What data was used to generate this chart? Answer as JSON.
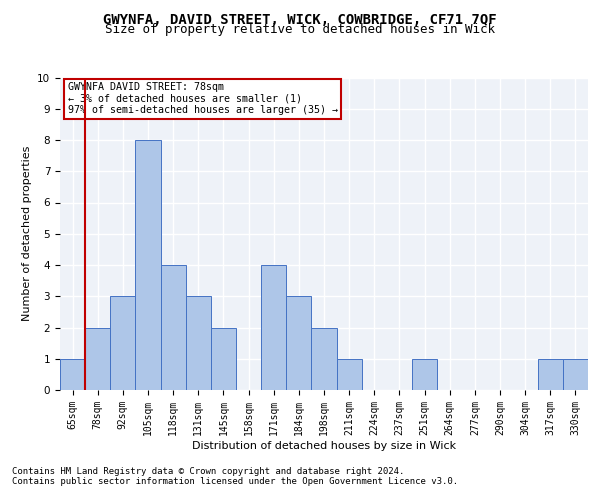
{
  "title": "GWYNFA, DAVID STREET, WICK, COWBRIDGE, CF71 7QF",
  "subtitle": "Size of property relative to detached houses in Wick",
  "xlabel": "Distribution of detached houses by size in Wick",
  "ylabel": "Number of detached properties",
  "footnote1": "Contains HM Land Registry data © Crown copyright and database right 2024.",
  "footnote2": "Contains public sector information licensed under the Open Government Licence v3.0.",
  "categories": [
    "65sqm",
    "78sqm",
    "92sqm",
    "105sqm",
    "118sqm",
    "131sqm",
    "145sqm",
    "158sqm",
    "171sqm",
    "184sqm",
    "198sqm",
    "211sqm",
    "224sqm",
    "237sqm",
    "251sqm",
    "264sqm",
    "277sqm",
    "290sqm",
    "304sqm",
    "317sqm",
    "330sqm"
  ],
  "values": [
    1,
    2,
    3,
    8,
    4,
    3,
    2,
    0,
    4,
    3,
    2,
    1,
    0,
    0,
    1,
    0,
    0,
    0,
    0,
    1,
    1
  ],
  "highlight_index": 1,
  "highlight_color": "#c00000",
  "bar_color": "#aec6e8",
  "bar_edge_color": "#4472c4",
  "ylim": [
    0,
    10
  ],
  "yticks": [
    0,
    1,
    2,
    3,
    4,
    5,
    6,
    7,
    8,
    9,
    10
  ],
  "annotation_text": "GWYNFA DAVID STREET: 78sqm\n← 3% of detached houses are smaller (1)\n97% of semi-detached houses are larger (35) →",
  "bg_color": "#eef2f8",
  "grid_color": "#ffffff",
  "title_fontsize": 10,
  "subtitle_fontsize": 9,
  "axis_fontsize": 8,
  "tick_fontsize": 7,
  "footnote_fontsize": 6.5
}
